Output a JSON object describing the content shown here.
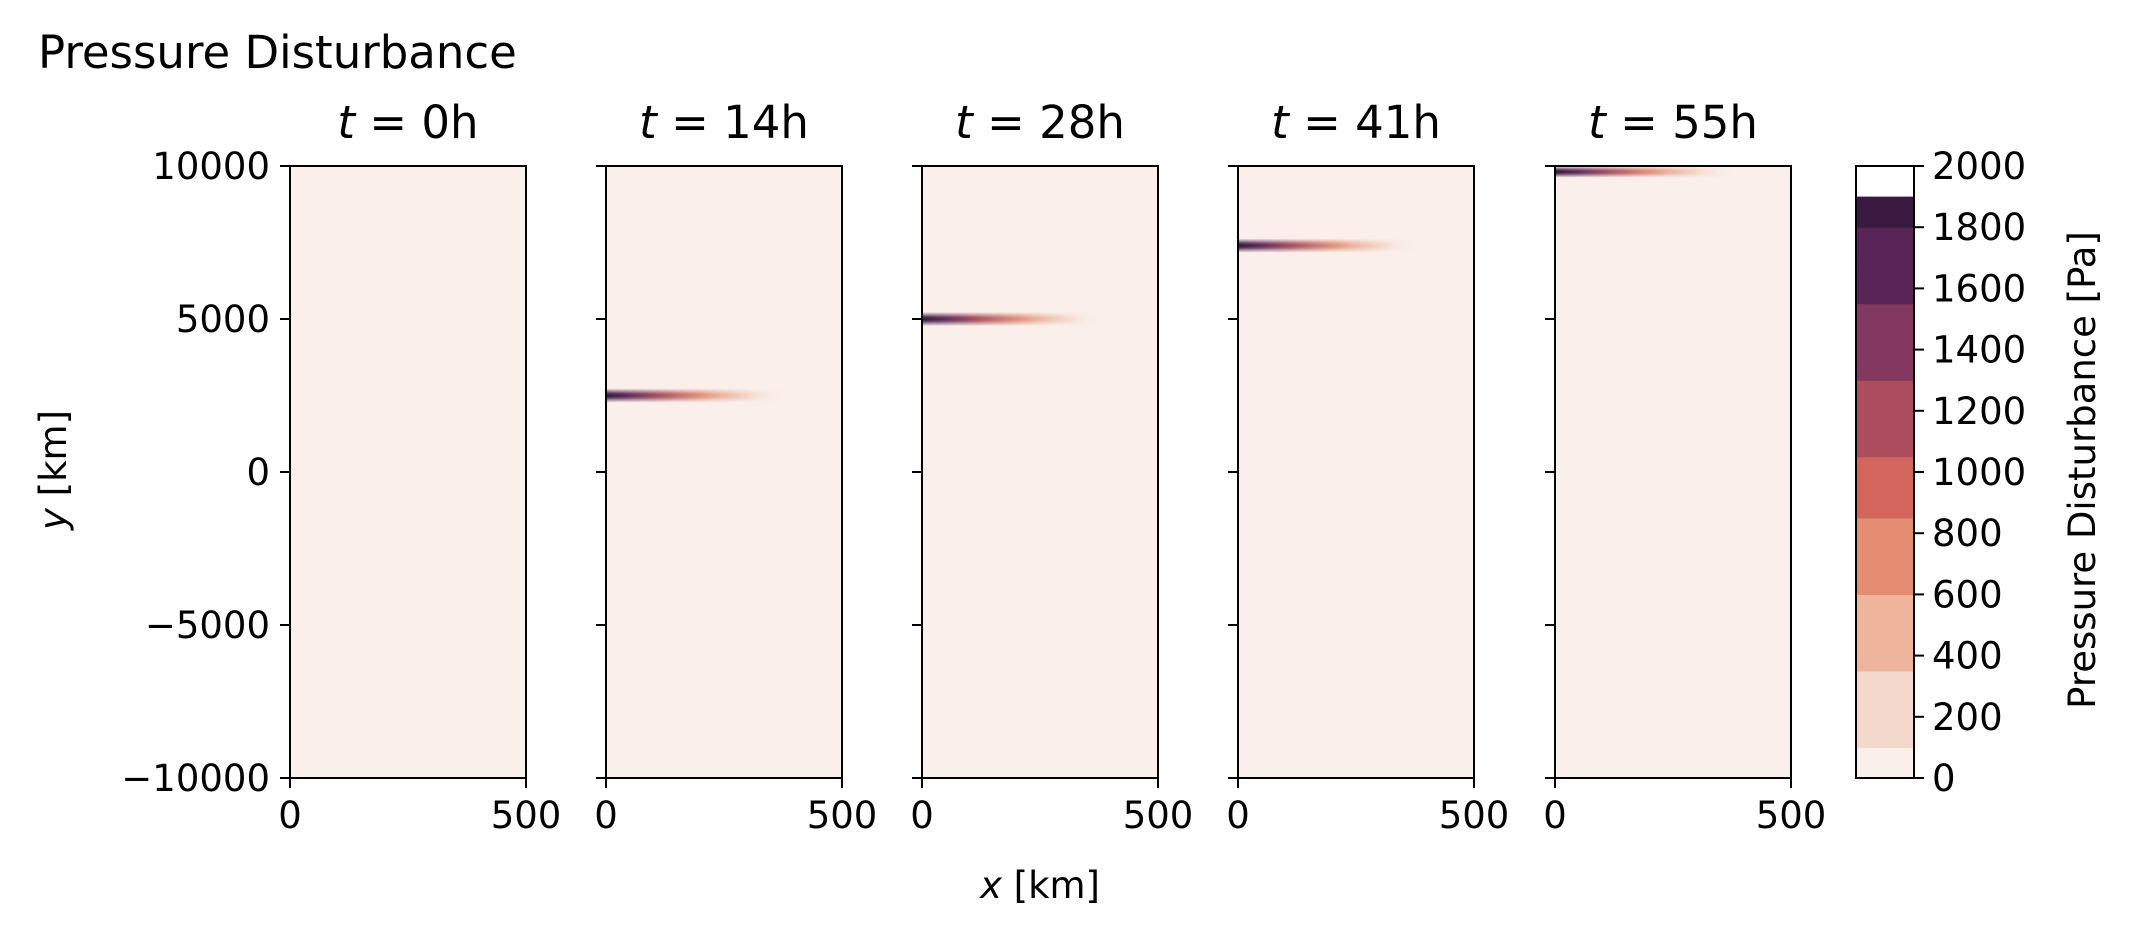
{
  "figure": {
    "title": "Pressure Disturbance",
    "xlabel": "x [km]",
    "ylabel": "y [km]",
    "colorbar_label": "Pressure Disturbance [Pa]"
  },
  "chart_data": {
    "type": "heatmap",
    "title": "Pressure Disturbance",
    "xlabel": "x [km]",
    "ylabel": "y [km]",
    "xlim": [
      0,
      500
    ],
    "ylim": [
      -10000,
      10000
    ],
    "x_ticks": [
      "0",
      "500"
    ],
    "y_ticks": [
      "10000",
      "5000",
      "0",
      "−5000",
      "−10000"
    ],
    "grid": false,
    "colormap": {
      "name": "rocket_r",
      "colors": [
        "#faefeb",
        "#f3d8cb",
        "#eeb49c",
        "#e58d72",
        "#d2665d",
        "#ad4e5f",
        "#83385f",
        "#592556",
        "#3b1a41"
      ],
      "range": [
        0,
        2000
      ],
      "data_max": 1900,
      "ticks": [
        "0",
        "200",
        "400",
        "600",
        "800",
        "1000",
        "1200",
        "1400",
        "1600",
        "1800",
        "2000"
      ],
      "label": "Pressure Disturbance [Pa]"
    },
    "panels": [
      {
        "title_var": "t",
        "title_value": "0h",
        "time_h": 0,
        "pulse_center_y_km": null,
        "pulse_half_width_y_km": 0,
        "pulse_extent_x_km": 0,
        "peak_pa": 0
      },
      {
        "title_var": "t",
        "title_value": "14h",
        "time_h": 14,
        "pulse_center_y_km": 2500,
        "pulse_half_width_y_km": 230,
        "pulse_extent_x_km": 380,
        "peak_pa": 1900
      },
      {
        "title_var": "t",
        "title_value": "28h",
        "time_h": 28,
        "pulse_center_y_km": 5000,
        "pulse_half_width_y_km": 230,
        "pulse_extent_x_km": 380,
        "peak_pa": 1900
      },
      {
        "title_var": "t",
        "title_value": "41h",
        "time_h": 41,
        "pulse_center_y_km": 7400,
        "pulse_half_width_y_km": 230,
        "pulse_extent_x_km": 380,
        "peak_pa": 1900
      },
      {
        "title_var": "t",
        "title_value": "55h",
        "time_h": 55,
        "pulse_center_y_km": 9850,
        "pulse_half_width_y_km": 230,
        "pulse_extent_x_km": 380,
        "peak_pa": 1900
      }
    ]
  }
}
